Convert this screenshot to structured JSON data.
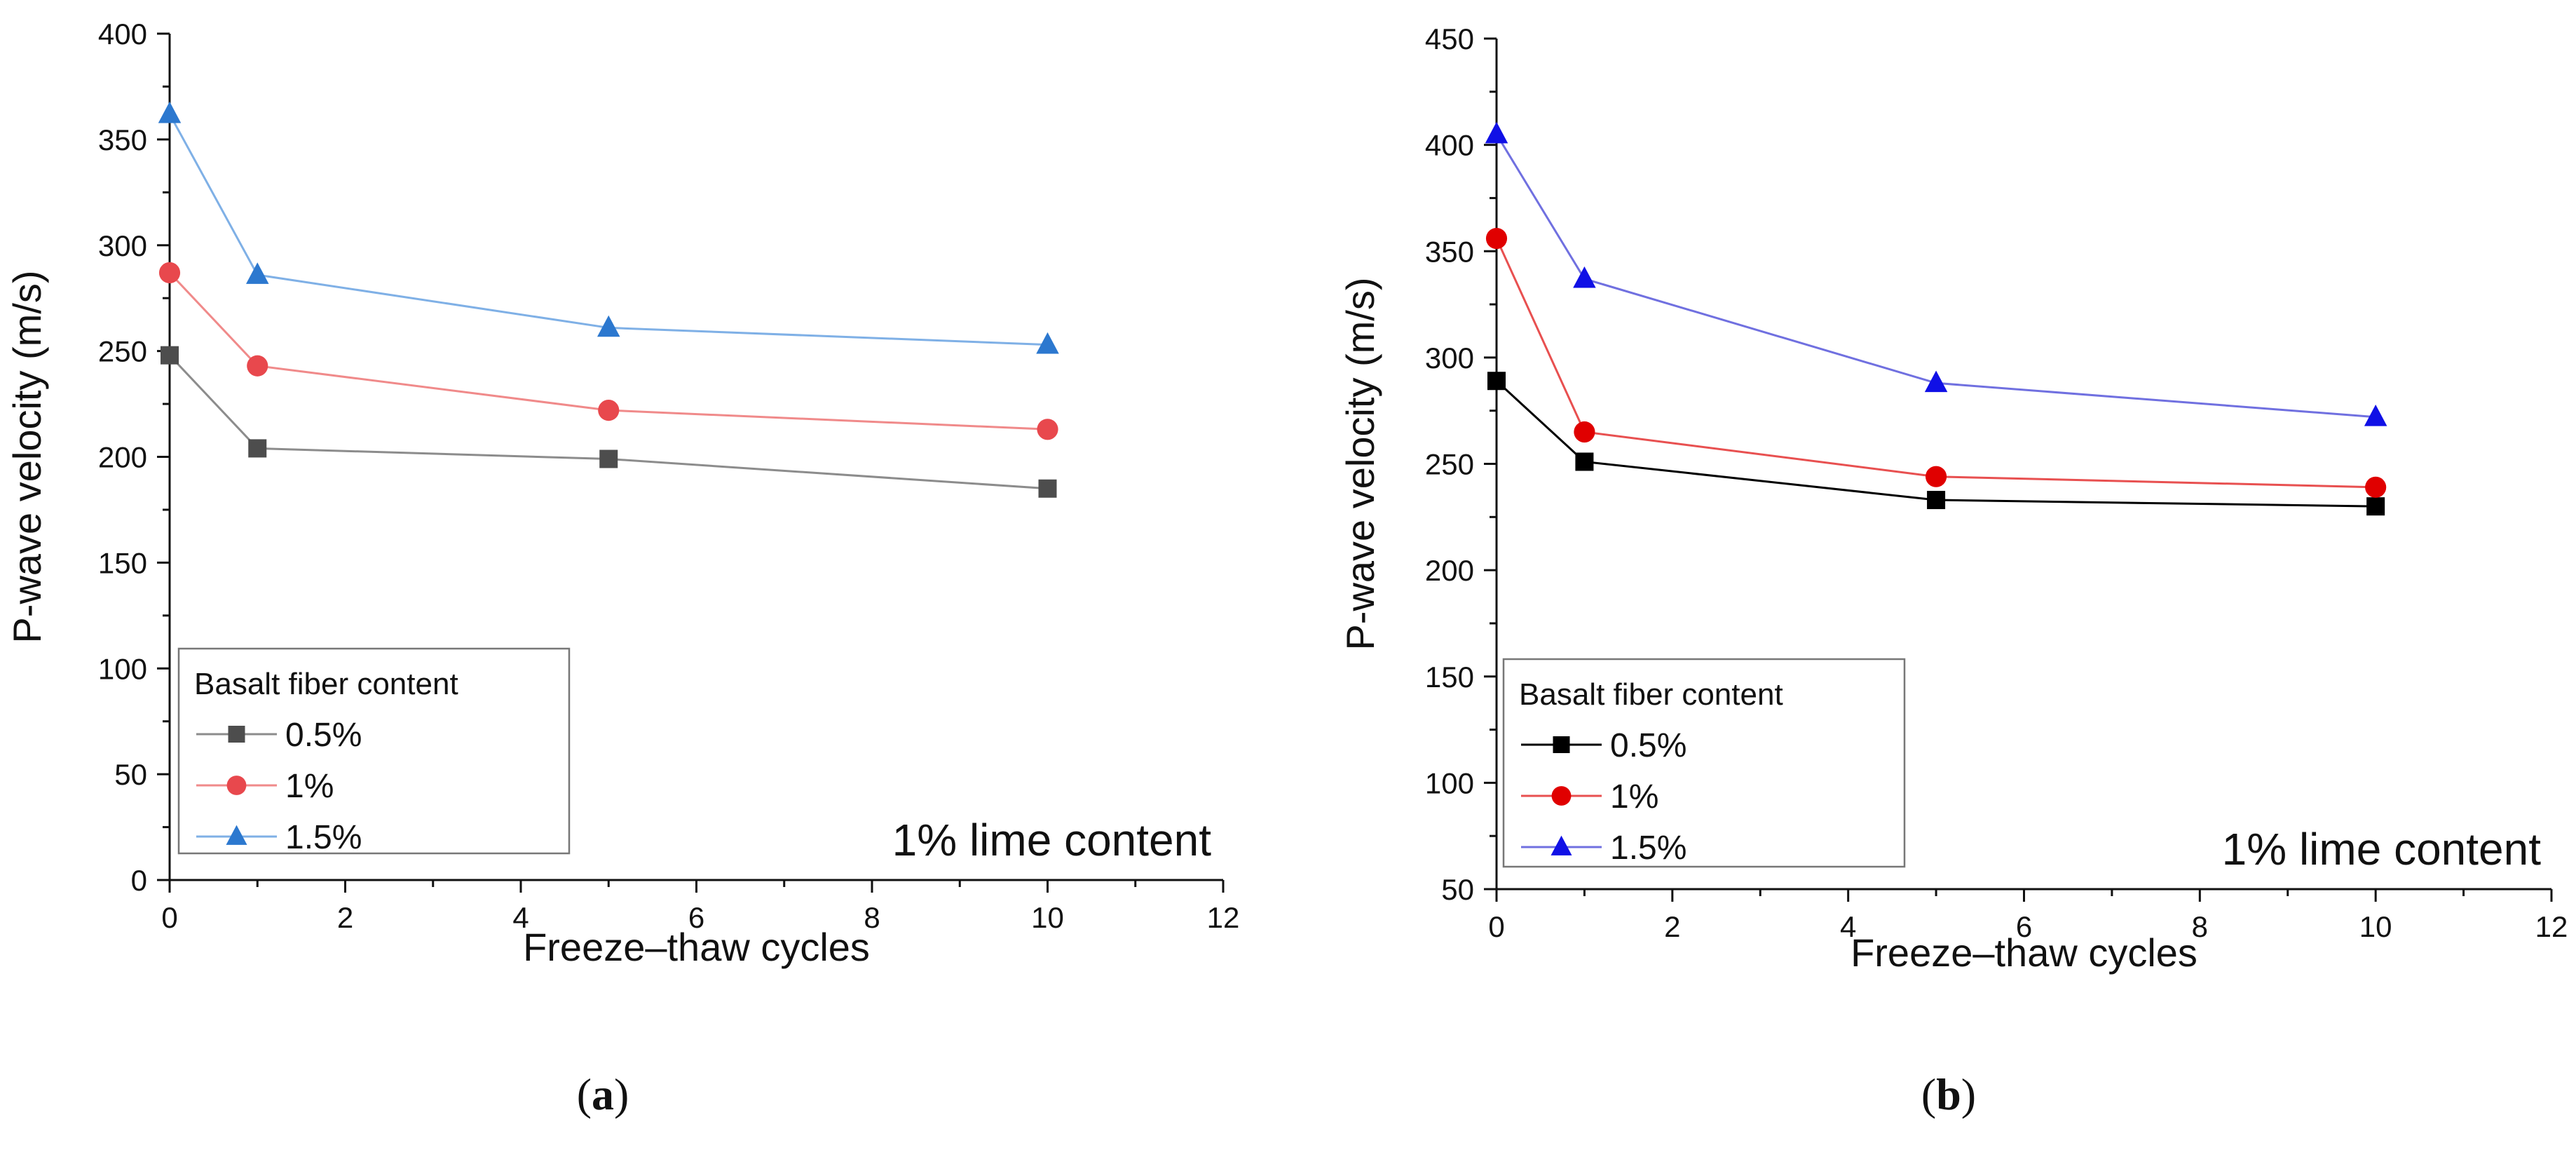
{
  "chart_data": [
    {
      "panel": "a",
      "type": "line",
      "xlabel": "Freeze–thaw cycles",
      "ylabel": "P-wave velocity (m/s)",
      "xlim": [
        0,
        12
      ],
      "ylim": [
        0,
        400
      ],
      "xticks": [
        0,
        2,
        4,
        6,
        8,
        10,
        12
      ],
      "yticks": [
        0,
        50,
        100,
        150,
        200,
        250,
        300,
        350,
        400
      ],
      "x": [
        0,
        1,
        5,
        10
      ],
      "legend_title": "Basalt fiber content",
      "legend_position": "bottom-left",
      "annotation": "1% lime content",
      "series": [
        {
          "name": "0.5%",
          "marker": "square",
          "color": "#4d4d4d",
          "line_color": "#8c8c8c",
          "values": [
            248,
            204,
            199,
            185
          ]
        },
        {
          "name": "1%",
          "marker": "circle",
          "color": "#e8484d",
          "line_color": "#f08a8a",
          "values": [
            287,
            243,
            222,
            213
          ]
        },
        {
          "name": "1.5%",
          "marker": "triangle",
          "color": "#2c78cf",
          "line_color": "#7fb0e6",
          "values": [
            362,
            286,
            261,
            253
          ]
        }
      ]
    },
    {
      "panel": "b",
      "type": "line",
      "xlabel": "Freeze–thaw cycles",
      "ylabel": "P-wave velocity (m/s)",
      "xlim": [
        0,
        12
      ],
      "ylim": [
        50,
        450
      ],
      "xticks": [
        0,
        2,
        4,
        6,
        8,
        10,
        12
      ],
      "yticks": [
        50,
        100,
        150,
        200,
        250,
        300,
        350,
        400,
        450
      ],
      "x": [
        0,
        1,
        5,
        10
      ],
      "legend_title": "Basalt fiber content",
      "legend_position": "bottom-left",
      "annotation": "1% lime content",
      "series": [
        {
          "name": "0.5%",
          "marker": "square",
          "color": "#000000",
          "line_color": "#000000",
          "values": [
            289,
            251,
            233,
            230
          ]
        },
        {
          "name": "1%",
          "marker": "circle",
          "color": "#e00000",
          "line_color": "#e85050",
          "values": [
            356,
            265,
            244,
            239
          ]
        },
        {
          "name": "1.5%",
          "marker": "triangle",
          "color": "#1010e6",
          "line_color": "#7070e0",
          "values": [
            405,
            337,
            288,
            272
          ]
        }
      ]
    }
  ],
  "panel_labels": [
    {
      "open": "(",
      "letter": "a",
      "close": ")"
    },
    {
      "open": "(",
      "letter": "b",
      "close": ")"
    }
  ]
}
